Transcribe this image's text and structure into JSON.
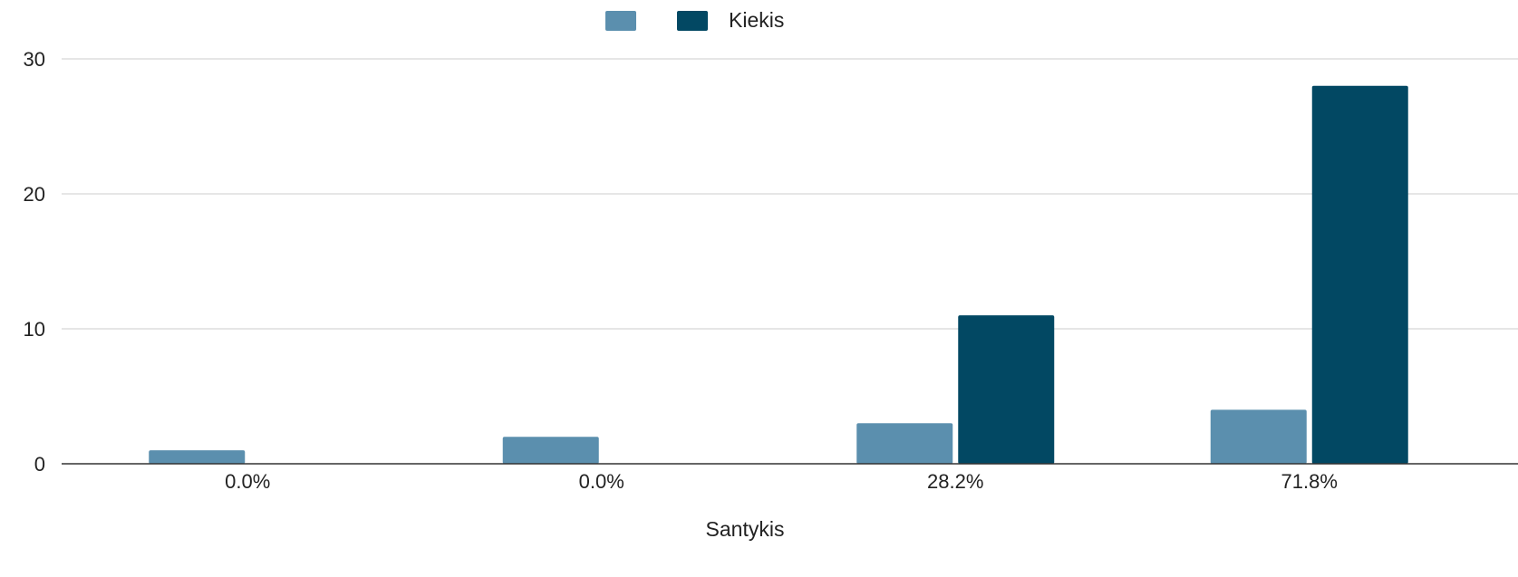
{
  "chart_data": {
    "type": "bar",
    "categories": [
      "0.0%",
      "0.0%",
      "28.2%",
      "71.8%"
    ],
    "series": [
      {
        "name": "",
        "color": "#5b8fae",
        "values": [
          1,
          2,
          3,
          4
        ]
      },
      {
        "name": "Kiekis",
        "color": "#024863",
        "values": [
          0,
          0,
          11,
          28
        ]
      }
    ],
    "xlabel": "Santykis",
    "ylabel": "",
    "ylim": [
      0,
      30
    ],
    "yticks": [
      0,
      10,
      20,
      30
    ],
    "grid": true,
    "legend_position": "top-center"
  }
}
